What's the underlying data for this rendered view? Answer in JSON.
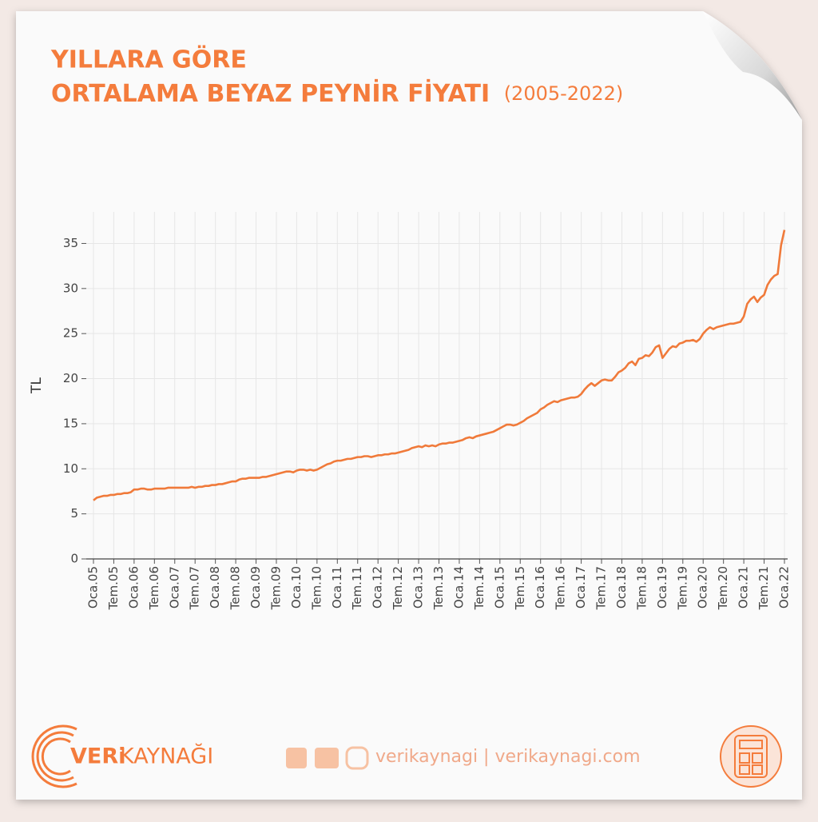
{
  "chart_data": {
    "type": "line",
    "title_line1": "YILLARA GÖRE",
    "title_line2": "ORTALAMA BEYAZ PEYNİR FİYATI",
    "title_note": "(2005-2022)",
    "y_label": "TL",
    "color": "#f07a3a",
    "grid": true,
    "ylim": [
      0,
      38.5
    ],
    "yticks": [
      0,
      5,
      10,
      15,
      20,
      25,
      30,
      35
    ],
    "categories": [
      "Oca.05",
      null,
      null,
      null,
      null,
      null,
      "Tem.05",
      null,
      null,
      null,
      null,
      null,
      "Oca.06",
      null,
      null,
      null,
      null,
      null,
      "Tem.06",
      null,
      null,
      null,
      null,
      null,
      "Oca.07",
      null,
      null,
      null,
      null,
      null,
      "Tem.07",
      null,
      null,
      null,
      null,
      null,
      "Oca.08",
      null,
      null,
      null,
      null,
      null,
      "Tem.08",
      null,
      null,
      null,
      null,
      null,
      "Oca.09",
      null,
      null,
      null,
      null,
      null,
      "Tem.09",
      null,
      null,
      null,
      null,
      null,
      "Oca.10",
      null,
      null,
      null,
      null,
      null,
      "Tem.10",
      null,
      null,
      null,
      null,
      null,
      "Oca.11",
      null,
      null,
      null,
      null,
      null,
      "Tem.11",
      null,
      null,
      null,
      null,
      null,
      "Oca.12",
      null,
      null,
      null,
      null,
      null,
      "Tem.12",
      null,
      null,
      null,
      null,
      null,
      "Oca.13",
      null,
      null,
      null,
      null,
      null,
      "Tem.13",
      null,
      null,
      null,
      null,
      null,
      "Oca.14",
      null,
      null,
      null,
      null,
      null,
      "Tem.14",
      null,
      null,
      null,
      null,
      null,
      "Oca.15",
      null,
      null,
      null,
      null,
      null,
      "Tem.15",
      null,
      null,
      null,
      null,
      null,
      "Oca.16",
      null,
      null,
      null,
      null,
      null,
      "Tem.16",
      null,
      null,
      null,
      null,
      null,
      "Oca.17",
      null,
      null,
      null,
      null,
      null,
      "Tem.17",
      null,
      null,
      null,
      null,
      null,
      "Oca.18",
      null,
      null,
      null,
      null,
      null,
      "Tem.18",
      null,
      null,
      null,
      null,
      null,
      "Oca.19",
      null,
      null,
      null,
      null,
      null,
      "Tem.19",
      null,
      null,
      null,
      null,
      null,
      "Oca.20",
      null,
      null,
      null,
      null,
      null,
      "Tem.20",
      null,
      null,
      null,
      null,
      null,
      "Oca.21",
      null,
      null,
      null,
      null,
      null,
      "Tem.21",
      null,
      null,
      null,
      null,
      null,
      "Oca.22"
    ],
    "values": [
      6.5,
      6.8,
      6.9,
      7.0,
      7.0,
      7.1,
      7.1,
      7.2,
      7.2,
      7.3,
      7.3,
      7.4,
      7.7,
      7.7,
      7.8,
      7.8,
      7.7,
      7.7,
      7.8,
      7.8,
      7.8,
      7.8,
      7.9,
      7.9,
      7.9,
      7.9,
      7.9,
      7.9,
      7.9,
      8.0,
      7.9,
      8.0,
      8.0,
      8.1,
      8.1,
      8.2,
      8.2,
      8.3,
      8.3,
      8.4,
      8.5,
      8.6,
      8.6,
      8.8,
      8.9,
      8.9,
      9.0,
      9.0,
      9.0,
      9.0,
      9.1,
      9.1,
      9.2,
      9.3,
      9.4,
      9.5,
      9.6,
      9.7,
      9.7,
      9.6,
      9.8,
      9.9,
      9.9,
      9.8,
      9.9,
      9.8,
      9.9,
      10.1,
      10.3,
      10.5,
      10.6,
      10.8,
      10.9,
      10.9,
      11.0,
      11.1,
      11.1,
      11.2,
      11.3,
      11.3,
      11.4,
      11.4,
      11.3,
      11.4,
      11.5,
      11.5,
      11.6,
      11.6,
      11.7,
      11.7,
      11.8,
      11.9,
      12.0,
      12.1,
      12.3,
      12.4,
      12.5,
      12.4,
      12.6,
      12.5,
      12.6,
      12.5,
      12.7,
      12.8,
      12.8,
      12.9,
      12.9,
      13.0,
      13.1,
      13.2,
      13.4,
      13.5,
      13.4,
      13.6,
      13.7,
      13.8,
      13.9,
      14.0,
      14.1,
      14.3,
      14.5,
      14.7,
      14.9,
      14.9,
      14.8,
      14.9,
      15.1,
      15.3,
      15.6,
      15.8,
      16.0,
      16.2,
      16.6,
      16.8,
      17.1,
      17.3,
      17.5,
      17.4,
      17.6,
      17.7,
      17.8,
      17.9,
      17.9,
      18.0,
      18.3,
      18.8,
      19.2,
      19.5,
      19.2,
      19.5,
      19.8,
      19.9,
      19.8,
      19.8,
      20.2,
      20.7,
      20.9,
      21.2,
      21.7,
      21.9,
      21.5,
      22.2,
      22.3,
      22.6,
      22.5,
      22.9,
      23.5,
      23.7,
      22.3,
      22.8,
      23.3,
      23.6,
      23.5,
      23.9,
      24.0,
      24.2,
      24.2,
      24.3,
      24.1,
      24.4,
      25.0,
      25.4,
      25.7,
      25.5,
      25.7,
      25.8,
      25.9,
      26.0,
      26.1,
      26.1,
      26.2,
      26.3,
      26.9,
      28.3,
      28.8,
      29.1,
      28.5,
      29.0,
      29.3,
      30.4,
      31.0,
      31.4,
      31.6,
      34.8,
      36.5
    ]
  },
  "footer": {
    "brand_bold": "VERi",
    "brand_rest": "KAYNAĞI",
    "social": "verikaynagi | verikaynagi.com"
  }
}
